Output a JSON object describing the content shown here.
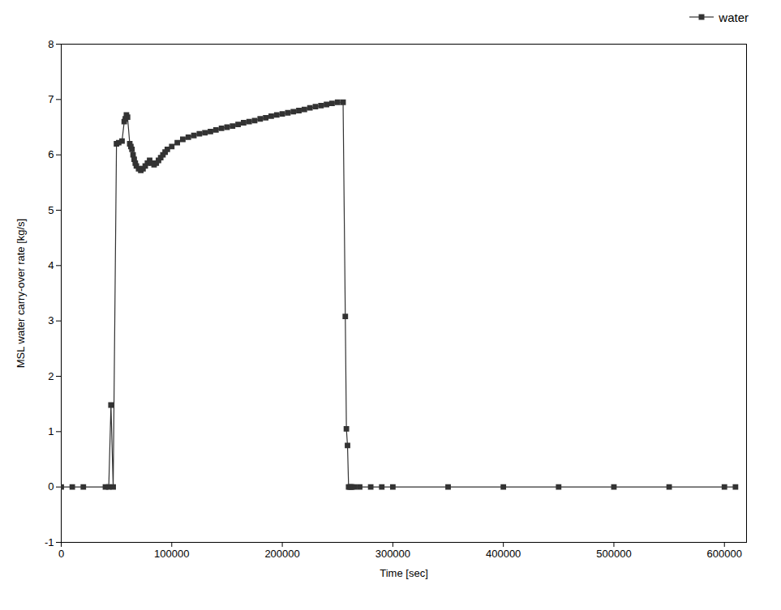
{
  "chart_data": {
    "type": "line",
    "xlabel": "Time [sec]",
    "ylabel": "MSL water carry-over rate [kg/s]",
    "x": [
      0,
      10000,
      20000,
      40000,
      43000,
      45000,
      47000,
      50000,
      52000,
      55000,
      57000,
      58000,
      59000,
      60000,
      62000,
      63000,
      64000,
      65000,
      66000,
      67000,
      68000,
      70000,
      72000,
      74000,
      76000,
      78000,
      80000,
      82000,
      84000,
      86000,
      88000,
      90000,
      92000,
      94000,
      96000,
      100000,
      105000,
      110000,
      115000,
      120000,
      125000,
      130000,
      135000,
      140000,
      145000,
      150000,
      155000,
      160000,
      165000,
      170000,
      175000,
      180000,
      185000,
      190000,
      195000,
      200000,
      205000,
      210000,
      215000,
      220000,
      225000,
      230000,
      235000,
      240000,
      245000,
      250000,
      255000,
      257000,
      258000,
      259000,
      260000,
      261000,
      262000,
      263000,
      265000,
      270000,
      280000,
      290000,
      300000,
      350000,
      400000,
      450000,
      500000,
      550000,
      600000,
      610000
    ],
    "series": [
      {
        "name": "water",
        "color": "#333333",
        "marker": "square",
        "values": [
          0,
          0,
          0,
          0,
          0,
          1.48,
          0,
          6.2,
          6.22,
          6.25,
          6.6,
          6.65,
          6.72,
          6.68,
          6.2,
          6.15,
          6.1,
          6.0,
          5.92,
          5.85,
          5.8,
          5.75,
          5.72,
          5.75,
          5.8,
          5.85,
          5.9,
          5.85,
          5.82,
          5.85,
          5.9,
          5.95,
          6.0,
          6.05,
          6.1,
          6.15,
          6.22,
          6.28,
          6.32,
          6.35,
          6.38,
          6.4,
          6.42,
          6.45,
          6.48,
          6.5,
          6.52,
          6.55,
          6.58,
          6.6,
          6.62,
          6.65,
          6.67,
          6.7,
          6.72,
          6.74,
          6.76,
          6.78,
          6.8,
          6.82,
          6.85,
          6.87,
          6.89,
          6.91,
          6.93,
          6.95,
          6.95,
          3.08,
          1.05,
          0.75,
          0,
          0,
          0,
          0,
          0,
          0,
          0,
          0,
          0,
          0,
          0,
          0,
          0,
          0,
          0,
          0
        ]
      }
    ],
    "xlim": [
      0,
      620000
    ],
    "ylim": [
      -1,
      8
    ],
    "xticks": [
      0,
      100000,
      200000,
      300000,
      400000,
      500000,
      600000
    ],
    "yticks": [
      -1,
      0,
      1,
      2,
      3,
      4,
      5,
      6,
      7,
      8
    ],
    "legend": "upper right"
  }
}
